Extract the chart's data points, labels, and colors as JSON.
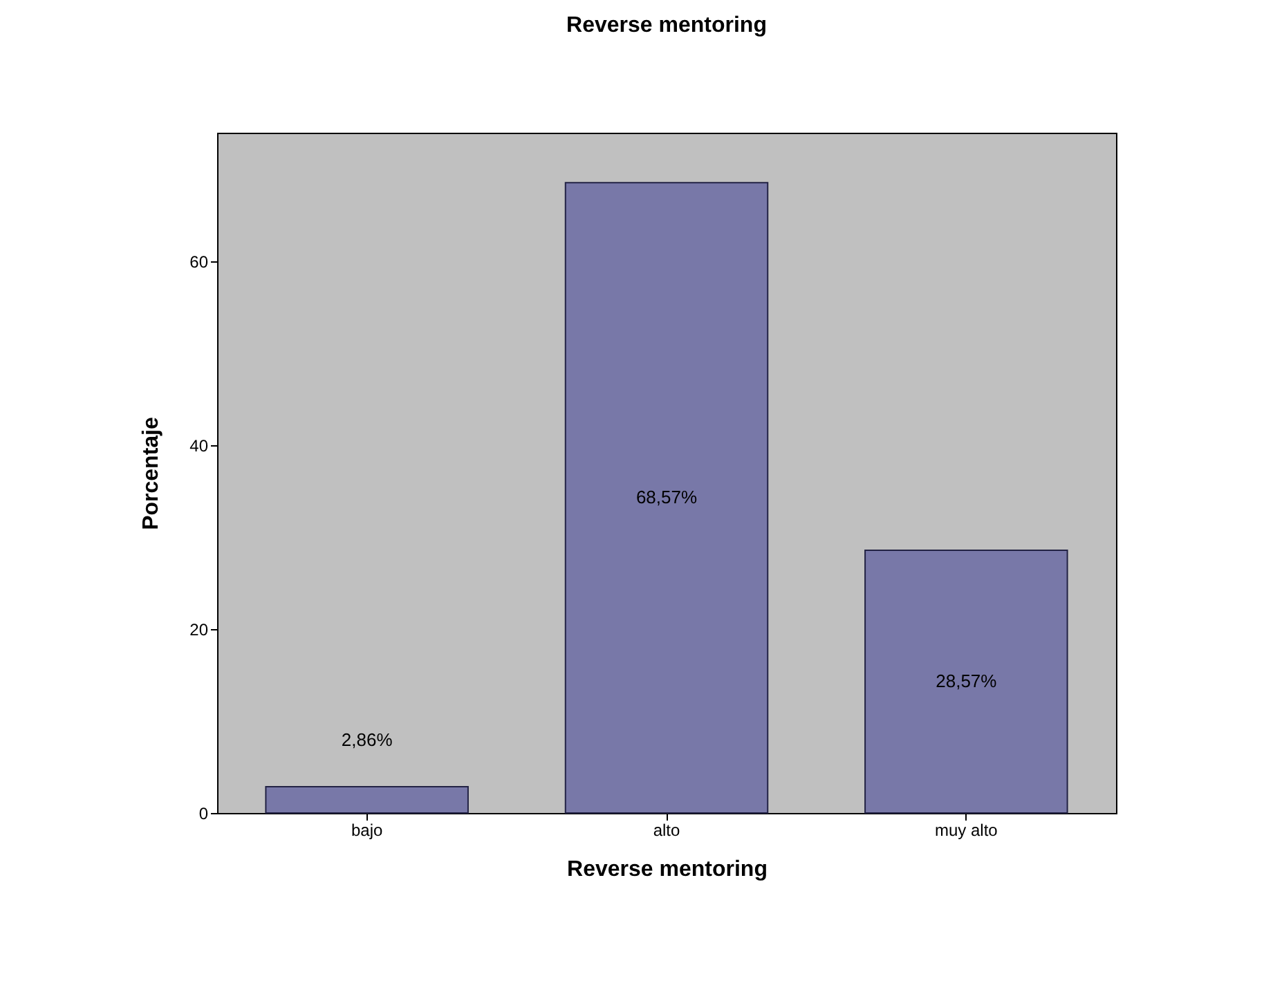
{
  "chart_data": {
    "type": "bar",
    "title": "Reverse mentoring",
    "xlabel": "Reverse mentoring",
    "ylabel": "Porcentaje",
    "categories": [
      "bajo",
      "alto",
      "muy alto"
    ],
    "values": [
      2.86,
      68.57,
      28.57
    ],
    "color": "#7878a8",
    "value_labels": [
      "2,86%",
      "68,57%",
      "28,57%"
    ],
    "ylim": [
      0,
      74
    ],
    "yticks": [
      0,
      20,
      40,
      60
    ],
    "grid": false
  }
}
